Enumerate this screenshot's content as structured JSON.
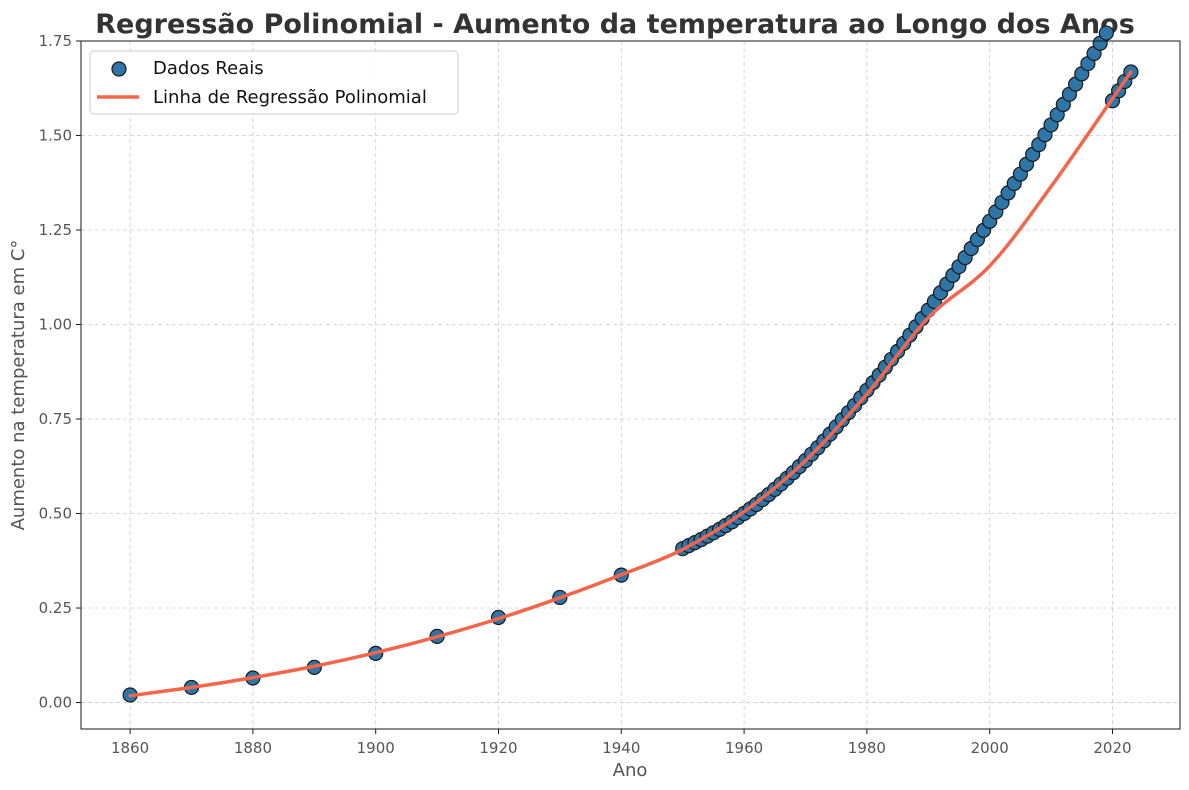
{
  "chart_data": {
    "type": "scatter",
    "title": "Regressão Polinomial - Aumento da temperatura ao Longo dos Anos",
    "xlabel": "Ano",
    "ylabel": "Aumento na temperatura em C°",
    "xlim": [
      1852,
      2031
    ],
    "ylim": [
      -0.07,
      1.75
    ],
    "xticks": [
      1860,
      1880,
      1900,
      1920,
      1940,
      1960,
      1980,
      2000,
      2020
    ],
    "xtick_labels": [
      "1860",
      "1880",
      "1900",
      "1920",
      "1940",
      "1960",
      "1980",
      "2000",
      "2020"
    ],
    "yticks": [
      0.0,
      0.25,
      0.5,
      0.75,
      1.0,
      1.25,
      1.5,
      1.75
    ],
    "ytick_labels": [
      "0.00",
      "0.25",
      "0.50",
      "0.75",
      "1.00",
      "1.25",
      "1.50",
      "1.75"
    ],
    "grid": true,
    "legend_position": "top-left",
    "colors": {
      "points": "#2e75a8",
      "point_edge": "#1a1a1a",
      "line": "#f4654a",
      "grid": "#cccccc",
      "text": "#555555"
    },
    "series": [
      {
        "name": "Dados Reais",
        "kind": "scatter",
        "x": [
          1860,
          1870,
          1880,
          1890,
          1900,
          1910,
          1920,
          1930,
          1940,
          1950,
          1951,
          1952,
          1953,
          1954,
          1955,
          1956,
          1957,
          1958,
          1959,
          1960,
          1961,
          1962,
          1963,
          1964,
          1965,
          1966,
          1967,
          1968,
          1969,
          1970,
          1971,
          1972,
          1973,
          1974,
          1975,
          1976,
          1977,
          1978,
          1979,
          1980,
          1981,
          1982,
          1983,
          1984,
          1985,
          1986,
          1987,
          1988,
          1989,
          1990,
          1991,
          1992,
          1993,
          1994,
          1995,
          1996,
          1997,
          1998,
          1999,
          2000,
          2001,
          2002,
          2003,
          2004,
          2005,
          2006,
          2007,
          2008,
          2009,
          2010,
          2011,
          2012,
          2013,
          2014,
          2015,
          2016,
          2017,
          2018,
          2019,
          2020,
          2021,
          2022,
          2023
        ],
        "y": [
          0.02,
          0.04,
          0.065,
          0.093,
          0.13,
          0.175,
          0.225,
          0.278,
          0.337,
          0.407,
          0.415,
          0.423,
          0.431,
          0.44,
          0.449,
          0.458,
          0.468,
          0.478,
          0.489,
          0.5,
          0.512,
          0.524,
          0.537,
          0.55,
          0.564,
          0.578,
          0.593,
          0.608,
          0.624,
          0.64,
          0.657,
          0.674,
          0.692,
          0.71,
          0.729,
          0.748,
          0.767,
          0.786,
          0.806,
          0.826,
          0.846,
          0.866,
          0.887,
          0.908,
          0.929,
          0.95,
          0.972,
          0.994,
          1.016,
          1.038,
          1.061,
          1.084,
          1.107,
          1.13,
          1.153,
          1.177,
          1.201,
          1.225,
          1.249,
          1.273,
          1.298,
          1.323,
          1.348,
          1.373,
          1.398,
          1.424,
          1.45,
          1.476,
          1.502,
          1.528,
          1.555,
          1.582,
          1.609,
          1.636,
          1.663,
          1.69,
          1.717,
          1.744,
          1.771,
          1.592,
          1.618,
          1.643,
          1.668
        ]
      },
      {
        "name": "Linha de Regressão Polinomial",
        "kind": "line",
        "x": [
          1860,
          1870,
          1880,
          1890,
          1900,
          1910,
          1920,
          1930,
          1940,
          1950,
          1960,
          1970,
          1980,
          1990,
          2000,
          2010,
          2023
        ],
        "y": [
          0.018,
          0.04,
          0.066,
          0.096,
          0.132,
          0.174,
          0.222,
          0.277,
          0.338,
          0.405,
          0.505,
          0.64,
          0.816,
          1.018,
          1.155,
          1.365,
          1.668
        ]
      }
    ]
  }
}
